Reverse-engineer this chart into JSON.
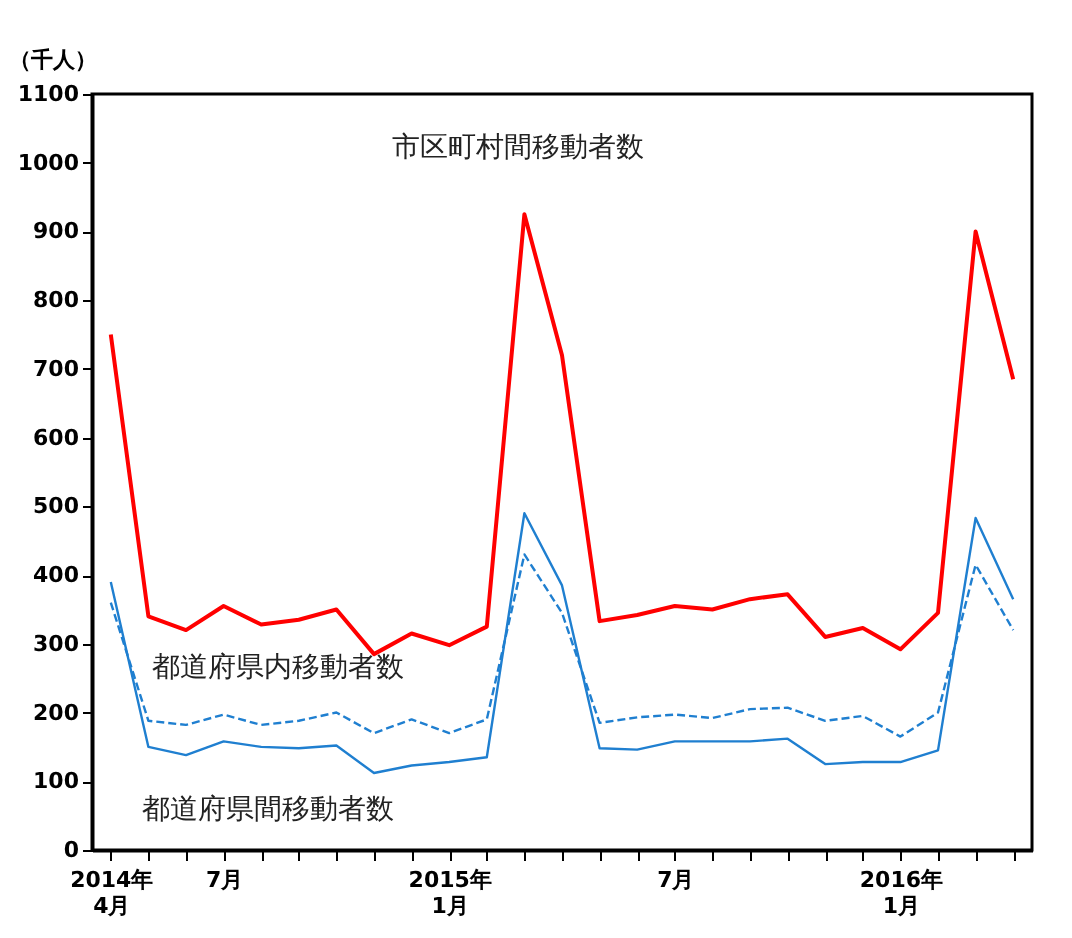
{
  "chart_data": {
    "type": "line",
    "ylabel": "（千人）",
    "categories": [
      "2014年\n4月",
      null,
      null,
      "7月",
      null,
      null,
      null,
      null,
      null,
      "2015年\n1月",
      null,
      null,
      null,
      null,
      null,
      "7月",
      null,
      null,
      null,
      null,
      null,
      "2016年\n1月",
      null,
      null,
      null
    ],
    "ylim": [
      0,
      1100
    ],
    "yticks": [
      0,
      100,
      200,
      300,
      400,
      500,
      600,
      700,
      800,
      900,
      1000,
      1100
    ],
    "grid": false,
    "marker": "none",
    "series": [
      {
        "name": "市区町村間移動者数",
        "color": "#ff0000",
        "line_style": "solid",
        "values": [
          750,
          340,
          320,
          355,
          328,
          335,
          350,
          285,
          315,
          298,
          325,
          925,
          720,
          333,
          342,
          355,
          350,
          365,
          372,
          310,
          323,
          292,
          345,
          900,
          685
        ]
      },
      {
        "name": "都道府県内移動者数",
        "color": "#1f7fd0",
        "line_style": "dashed",
        "values": [
          360,
          188,
          182,
          197,
          182,
          188,
          200,
          170,
          190,
          170,
          190,
          430,
          345,
          185,
          193,
          197,
          192,
          205,
          207,
          188,
          195,
          165,
          200,
          415,
          320
        ]
      },
      {
        "name": "都道府県間移動者数",
        "color": "#1f7fd0",
        "line_style": "solid",
        "values": [
          390,
          150,
          138,
          158,
          150,
          148,
          152,
          112,
          123,
          128,
          135,
          490,
          385,
          148,
          146,
          158,
          158,
          158,
          162,
          125,
          128,
          128,
          145,
          483,
          365
        ]
      }
    ]
  }
}
